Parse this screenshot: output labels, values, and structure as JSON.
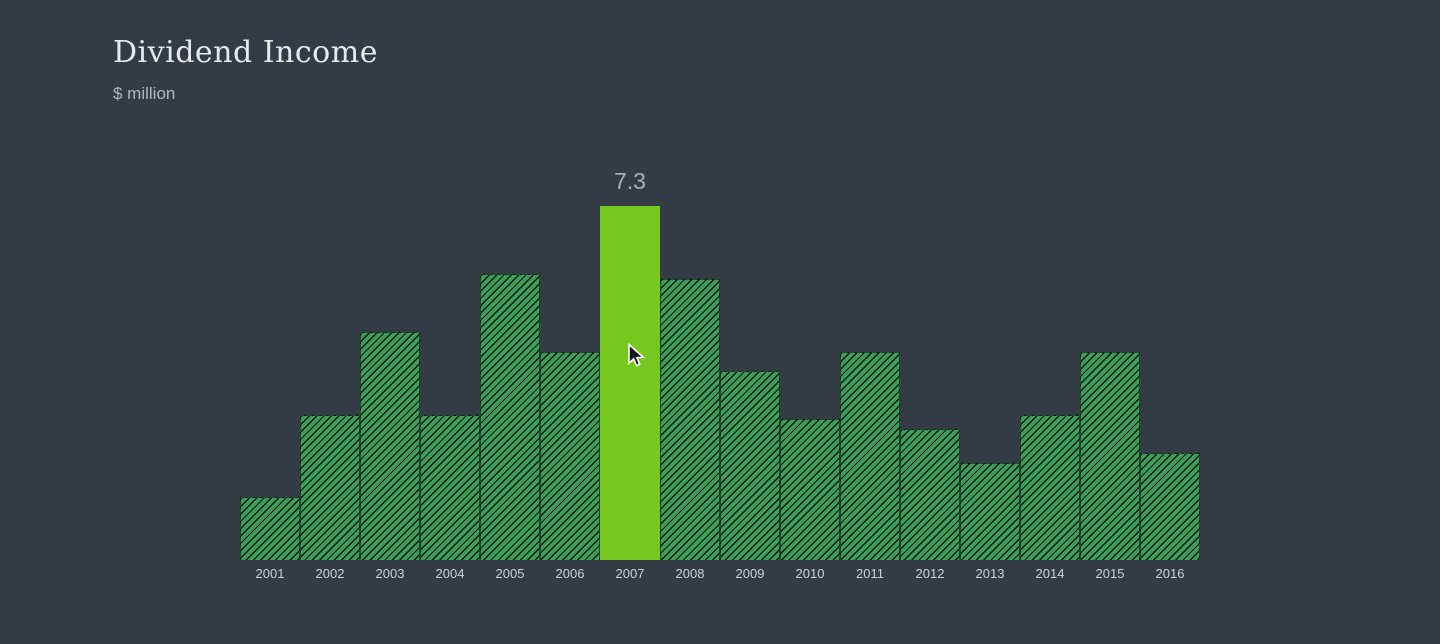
{
  "window": {
    "background": "#333b44"
  },
  "header": {
    "title": "Dividend Income",
    "subtitle": "$ million"
  },
  "chart_data": {
    "type": "bar",
    "title": "Dividend Income",
    "ylabel": "$ million",
    "xlabel": "",
    "categories": [
      "2001",
      "2002",
      "2003",
      "2004",
      "2005",
      "2006",
      "2007",
      "2008",
      "2009",
      "2010",
      "2011",
      "2012",
      "2013",
      "2014",
      "2015",
      "2016"
    ],
    "values": [
      1.3,
      3.0,
      4.7,
      3.0,
      5.9,
      4.3,
      7.3,
      5.8,
      3.9,
      2.9,
      4.3,
      2.7,
      2.0,
      3.0,
      4.3,
      2.2
    ],
    "ylim": [
      0,
      7.3
    ],
    "grid": false,
    "legend": false,
    "bar_style": "diagonal-hatch",
    "highlight": {
      "category": "2007",
      "value_label": "7.3"
    },
    "colors": {
      "background": "#333b44",
      "bar_fill": "#3aa055",
      "bar_hatch": "#0d1318",
      "highlight_fill": "#76c821",
      "value_label": "#a9b0b6",
      "tick_label": "#ccd1d5",
      "title": "#e7eaec",
      "subtitle": "#b2b8bd"
    }
  }
}
